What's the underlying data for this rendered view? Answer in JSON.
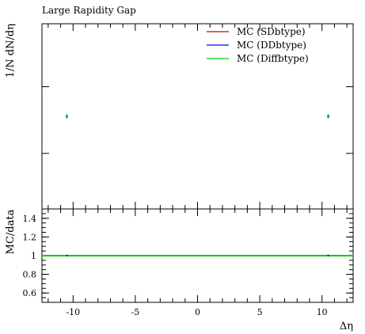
{
  "chart_data": [
    {
      "type": "scatter",
      "title": "Large Rapidity Gap",
      "ylabel": "1/N dN/dη",
      "xlabel": "",
      "xlim": [
        -12.5,
        12.5
      ],
      "y_scale": "log",
      "y_tick_labels": "none",
      "grid": false,
      "legend": "top-right",
      "series": [
        {
          "name": "MC (SDbtype)",
          "color": "#cc0000",
          "points": []
        },
        {
          "name": "MC (DDbtype)",
          "color": "#0000ff",
          "points": []
        },
        {
          "name": "MC (Diffbtype)",
          "color": "#00cc00",
          "points": []
        }
      ],
      "markers": [
        {
          "x": -10.5,
          "level": 0.5,
          "color": "#009999"
        },
        {
          "x": 10.5,
          "level": 0.5,
          "color": "#009999"
        }
      ]
    },
    {
      "type": "line",
      "title": "",
      "ylabel": "MC/data",
      "xlabel": "Δη",
      "xlim": [
        -12.5,
        12.5
      ],
      "ylim": [
        0.5,
        1.5
      ],
      "y_ticks": [
        0.6,
        0.8,
        1,
        1.2,
        1.4
      ],
      "y_tick_labels": [
        "0.6",
        "0.8",
        "1",
        "1.2",
        "1.4"
      ],
      "x_ticks": [
        -10,
        -5,
        0,
        5,
        10
      ],
      "x_tick_labels": [
        "-10",
        "-5",
        "0",
        "5",
        "10"
      ],
      "grid": false,
      "series": [
        {
          "name": "",
          "color": "#00cc00",
          "x": [
            -12.5,
            12.5
          ],
          "values": [
            1,
            1
          ]
        }
      ],
      "markers": [
        {
          "x": -10.5,
          "y": 1
        },
        {
          "x": 10.5,
          "y": 1
        }
      ]
    }
  ]
}
